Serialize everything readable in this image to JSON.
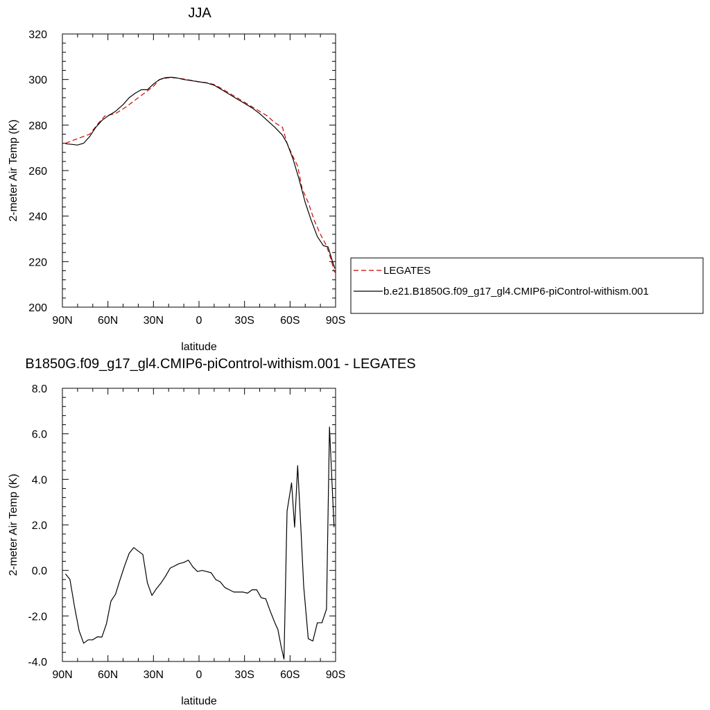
{
  "chart_data": [
    {
      "type": "line",
      "title": "JJA",
      "xlabel": "latitude",
      "ylabel": "2-meter Air Temp (K)",
      "xlim": [
        90,
        -90
      ],
      "ylim": [
        200,
        320
      ],
      "x_ticks": [
        90,
        60,
        30,
        0,
        -30,
        -60,
        -90
      ],
      "x_tick_labels": [
        "90N",
        "60N",
        "30N",
        "0",
        "30S",
        "60S",
        "90S"
      ],
      "y_ticks": [
        200,
        220,
        240,
        260,
        280,
        300,
        320
      ],
      "y_tick_labels": [
        "200",
        "220",
        "240",
        "260",
        "280",
        "300",
        "320"
      ],
      "grid": false,
      "legend_position": "right",
      "series": [
        {
          "name": "LEGATES",
          "color": "#cc0000",
          "dash": "dashed",
          "points": [
            [
              88,
              272
            ],
            [
              80,
              274
            ],
            [
              72,
              276
            ],
            [
              66,
              281
            ],
            [
              62,
              284
            ],
            [
              55,
              285
            ],
            [
              48,
              288
            ],
            [
              42,
              291
            ],
            [
              36,
              294
            ],
            [
              30,
              297
            ],
            [
              26,
              300
            ],
            [
              20,
              300.8
            ],
            [
              15,
              300.7
            ],
            [
              10,
              300.2
            ],
            [
              5,
              299.6
            ],
            [
              0,
              299
            ],
            [
              -5,
              298.6
            ],
            [
              -10,
              297.8
            ],
            [
              -15,
              296
            ],
            [
              -20,
              294
            ],
            [
              -25,
              292
            ],
            [
              -30,
              290
            ],
            [
              -35,
              288
            ],
            [
              -40,
              286
            ],
            [
              -45,
              284
            ],
            [
              -50,
              281
            ],
            [
              -55,
              279
            ],
            [
              -58,
              272
            ],
            [
              -62,
              266
            ],
            [
              -65,
              262
            ],
            [
              -68,
              252
            ],
            [
              -72,
              246
            ],
            [
              -76,
              238
            ],
            [
              -80,
              232
            ],
            [
              -84,
              227
            ],
            [
              -87,
              221
            ],
            [
              -89,
              216
            ],
            [
              -90,
              215
            ]
          ]
        },
        {
          "name": "b.e21.B1850G.f09_g17_gl4.CMIP6-piControl-withism.001",
          "color": "#000000",
          "dash": "solid",
          "points": [
            [
              88,
              271.8
            ],
            [
              84,
              271.5
            ],
            [
              80,
              271.2
            ],
            [
              76,
              272
            ],
            [
              72,
              275
            ],
            [
              68,
              279
            ],
            [
              64,
              282
            ],
            [
              60,
              284
            ],
            [
              55,
              286
            ],
            [
              50,
              289
            ],
            [
              46,
              292
            ],
            [
              42,
              294
            ],
            [
              38,
              295.5
            ],
            [
              34,
              295.5
            ],
            [
              30,
              298
            ],
            [
              26,
              300
            ],
            [
              22,
              300.8
            ],
            [
              18,
              301
            ],
            [
              14,
              300.6
            ],
            [
              10,
              300
            ],
            [
              5,
              299.5
            ],
            [
              0,
              299
            ],
            [
              -5,
              298.5
            ],
            [
              -10,
              297.5
            ],
            [
              -15,
              295.5
            ],
            [
              -20,
              293.5
            ],
            [
              -25,
              291.5
            ],
            [
              -30,
              289.5
            ],
            [
              -35,
              287.5
            ],
            [
              -40,
              285
            ],
            [
              -45,
              282
            ],
            [
              -50,
              279
            ],
            [
              -55,
              275.5
            ],
            [
              -58,
              272
            ],
            [
              -62,
              265
            ],
            [
              -66,
              256
            ],
            [
              -70,
              246
            ],
            [
              -74,
              238
            ],
            [
              -78,
              231
            ],
            [
              -82,
              227
            ],
            [
              -85,
              226.5
            ],
            [
              -88,
              220
            ],
            [
              -89.5,
              217
            ]
          ]
        }
      ]
    },
    {
      "type": "line",
      "title": "B1850G.f09_g17_gl4.CMIP6-piControl-withism.001 - LEGATES",
      "xlabel": "latitude",
      "ylabel": "2-meter Air Temp (K)",
      "xlim": [
        90,
        -90
      ],
      "ylim": [
        -4,
        8
      ],
      "x_ticks": [
        90,
        60,
        30,
        0,
        -30,
        -60,
        -90
      ],
      "x_tick_labels": [
        "90N",
        "60N",
        "30N",
        "0",
        "30S",
        "60S",
        "90S"
      ],
      "y_ticks": [
        -4,
        -2,
        0,
        2,
        4,
        6,
        8
      ],
      "y_tick_labels": [
        "-4.0",
        "-2.0",
        "0.0",
        "2.0",
        "4.0",
        "6.0",
        "8.0"
      ],
      "grid": false,
      "series": [
        {
          "color": "#000000",
          "dash": "solid",
          "points": [
            [
              88,
              -0.15
            ],
            [
              85,
              -0.4
            ],
            [
              82,
              -1.6
            ],
            [
              79,
              -2.65
            ],
            [
              76,
              -3.2
            ],
            [
              73,
              -3.05
            ],
            [
              70,
              -3.05
            ],
            [
              67,
              -2.92
            ],
            [
              64,
              -2.93
            ],
            [
              61,
              -2.35
            ],
            [
              58,
              -1.35
            ],
            [
              55,
              -1.05
            ],
            [
              52,
              -0.4
            ],
            [
              49,
              0.2
            ],
            [
              46,
              0.75
            ],
            [
              43,
              1.0
            ],
            [
              40,
              0.85
            ],
            [
              37,
              0.7
            ],
            [
              34,
              -0.55
            ],
            [
              31,
              -1.1
            ],
            [
              28,
              -0.8
            ],
            [
              25,
              -0.55
            ],
            [
              22,
              -0.25
            ],
            [
              19,
              0.1
            ],
            [
              16,
              0.2
            ],
            [
              13,
              0.3
            ],
            [
              10,
              0.35
            ],
            [
              7,
              0.45
            ],
            [
              4,
              0.15
            ],
            [
              1,
              -0.05
            ],
            [
              -2,
              0.0
            ],
            [
              -5,
              -0.05
            ],
            [
              -8,
              -0.1
            ],
            [
              -11,
              -0.4
            ],
            [
              -14,
              -0.5
            ],
            [
              -17,
              -0.75
            ],
            [
              -20,
              -0.85
            ],
            [
              -23,
              -0.95
            ],
            [
              -26,
              -0.95
            ],
            [
              -29,
              -0.95
            ],
            [
              -32,
              -1.0
            ],
            [
              -35,
              -0.85
            ],
            [
              -38,
              -0.85
            ],
            [
              -41,
              -1.2
            ],
            [
              -44,
              -1.25
            ],
            [
              -47,
              -1.8
            ],
            [
              -50,
              -2.3
            ],
            [
              -52,
              -2.6
            ],
            [
              -54,
              -3.3
            ],
            [
              -56,
              -3.9
            ],
            [
              -58,
              2.6
            ],
            [
              -61,
              3.85
            ],
            [
              -63,
              1.9
            ],
            [
              -65,
              4.6
            ],
            [
              -67,
              2.0
            ],
            [
              -69,
              -0.7
            ],
            [
              -72,
              -3.0
            ],
            [
              -75,
              -3.1
            ],
            [
              -78,
              -2.3
            ],
            [
              -81,
              -2.3
            ],
            [
              -84,
              -1.7
            ],
            [
              -86,
              6.3
            ],
            [
              -89,
              1.9
            ]
          ]
        }
      ]
    }
  ]
}
